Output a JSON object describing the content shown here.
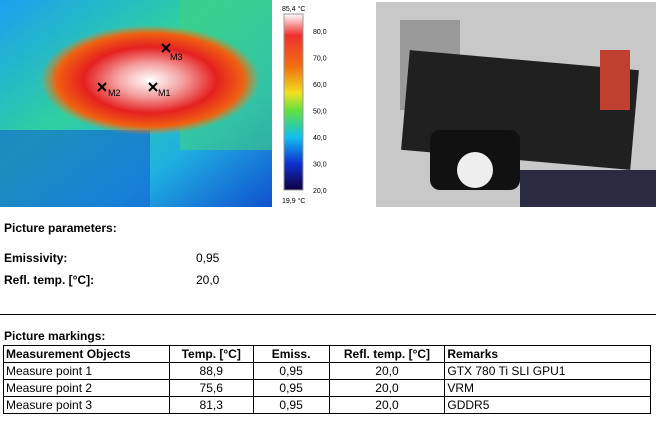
{
  "thermal": {
    "scale_max": "85,4 °C",
    "scale_min": "19,9 °C",
    "scale_ticks": [
      "80,0",
      "70,0",
      "60,0",
      "50,0",
      "40,0",
      "30,0",
      "20,0"
    ],
    "markers": [
      "M1",
      "M2",
      "M3"
    ]
  },
  "parameters": {
    "title": "Picture parameters:",
    "rows": [
      [
        "Emissivity:",
        "0,95"
      ],
      [
        "Refl. temp. [°C]:",
        "20,0"
      ]
    ]
  },
  "markings": {
    "title": "Picture markings:",
    "header": [
      "Measurement Objects",
      "Temp. [°C]",
      "Emiss.",
      "Refl. temp. [°C]",
      "Remarks"
    ],
    "rows": [
      [
        "Measure point 1",
        "88,9",
        "0,95",
        "20,0",
        "GTX 780 Ti SLI GPU1"
      ],
      [
        "Measure point 2",
        "75,6",
        "0,95",
        "20,0",
        "VRM"
      ],
      [
        "Measure point 3",
        "81,3",
        "0,95",
        "20,0",
        "GDDR5"
      ]
    ]
  }
}
